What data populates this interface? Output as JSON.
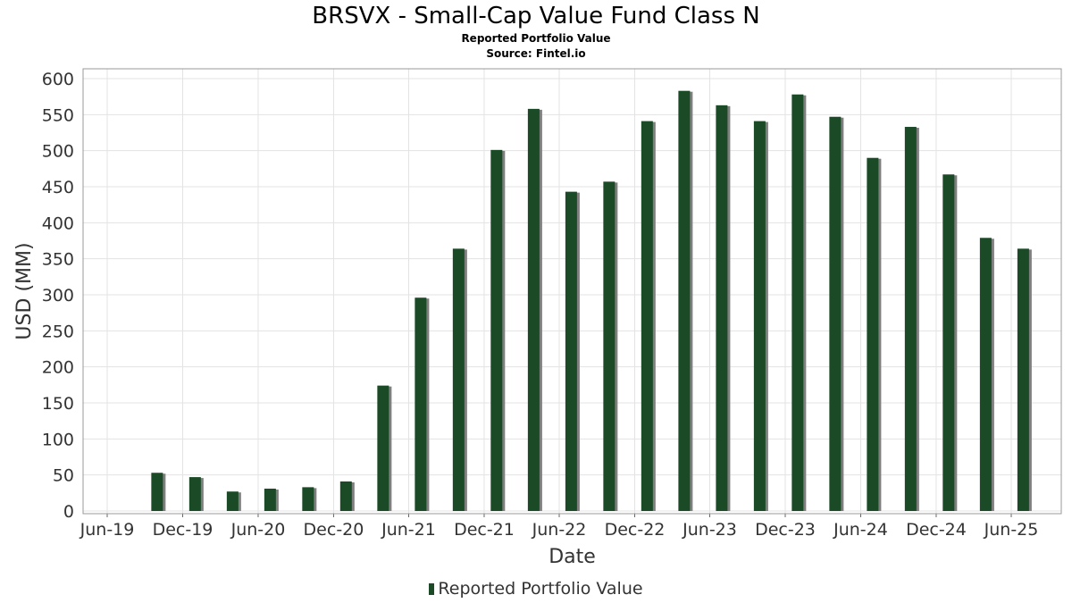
{
  "header": {
    "title": "BRSVX - Small-Cap Value Fund Class N",
    "subtitle": "Reported Portfolio Value",
    "source": "Source: Fintel.io"
  },
  "colors": {
    "bar": "#1a4a26",
    "bar_shadow": "#7f7f7f",
    "grid": "#e3e3e3",
    "frame": "#999999"
  },
  "chart_data": {
    "type": "bar",
    "title": "BRSVX - Small-Cap Value Fund Class N",
    "subtitle": "Reported Portfolio Value",
    "xlabel": "Date",
    "ylabel": "USD (MM)",
    "ylim": [
      0,
      610
    ],
    "yticks": [
      0,
      50,
      100,
      150,
      200,
      250,
      300,
      350,
      400,
      450,
      500,
      550,
      600
    ],
    "xticks": [
      "Jun-19",
      "Dec-19",
      "Jun-20",
      "Dec-20",
      "Jun-21",
      "Dec-21",
      "Jun-22",
      "Dec-22",
      "Jun-23",
      "Dec-23",
      "Jun-24",
      "Dec-24",
      "Jun-25"
    ],
    "grid": true,
    "legend_position": "bottom-center",
    "series": [
      {
        "name": "Reported Portfolio Value",
        "x": [
          "2019-09-30",
          "2019-12-31",
          "2020-03-31",
          "2020-06-30",
          "2020-09-30",
          "2020-12-31",
          "2021-03-31",
          "2021-06-30",
          "2021-09-30",
          "2021-12-31",
          "2022-03-31",
          "2022-06-30",
          "2022-09-30",
          "2022-12-31",
          "2023-03-31",
          "2023-06-30",
          "2023-09-30",
          "2023-12-31",
          "2024-03-31",
          "2024-06-30",
          "2024-09-30",
          "2024-12-31",
          "2025-03-31",
          "2025-06-30"
        ],
        "values": [
          53,
          47,
          27,
          31,
          33,
          41,
          174,
          296,
          364,
          501,
          558,
          443,
          457,
          541,
          583,
          563,
          541,
          578,
          547,
          490,
          533,
          467,
          379,
          364
        ]
      }
    ]
  }
}
